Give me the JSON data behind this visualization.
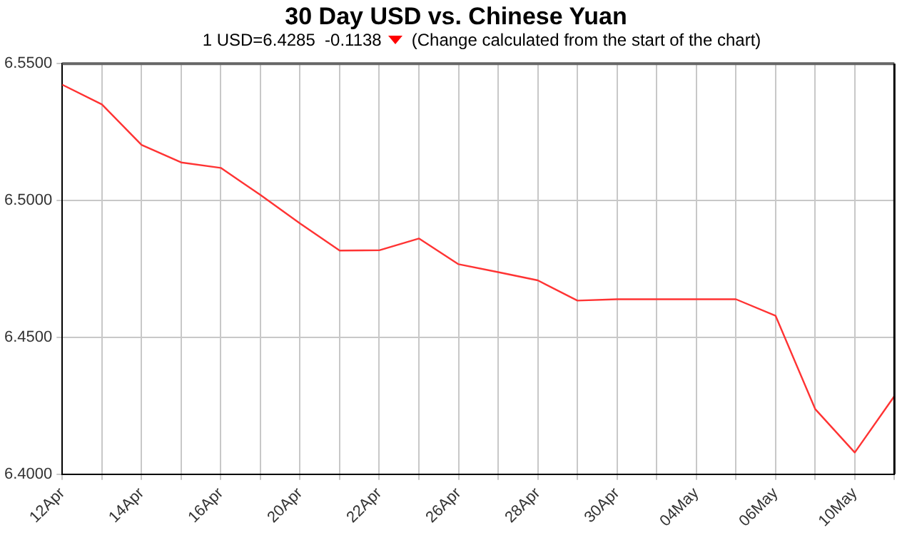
{
  "chart_data": {
    "type": "line",
    "title": "30 Day USD vs. Chinese Yuan",
    "subtitle": "1 USD=6.4285  -0.1138",
    "annotations": [
      "(Change calculated from the start of the chart)"
    ],
    "categories": [
      "12Apr",
      null,
      "14Apr",
      null,
      "16Apr",
      null,
      "20Apr",
      null,
      "22Apr",
      null,
      "26Apr",
      null,
      "28Apr",
      null,
      "30Apr",
      null,
      "04May",
      null,
      "06May",
      null,
      "10May",
      null
    ],
    "series": [
      {
        "color": "#ff3333",
        "values": [
          6.5423,
          6.5351,
          6.5203,
          6.5139,
          6.5119,
          6.502,
          6.4916,
          6.4817,
          6.4818,
          6.4861,
          6.4767,
          6.4738,
          6.4708,
          6.4634,
          6.4639,
          6.4639,
          6.4639,
          6.4639,
          6.4579,
          6.4238,
          6.4079,
          6.4285
        ]
      }
    ],
    "ylim": [
      6.4,
      6.55
    ],
    "yticks": [
      {
        "value": 6.4,
        "label": "6.4000"
      },
      {
        "value": 6.45,
        "label": "6.4500"
      },
      {
        "value": 6.5,
        "label": "6.5000"
      },
      {
        "value": 6.55,
        "label": "6.5500"
      }
    ],
    "grid": true,
    "legend": false,
    "marker": "none",
    "line_style": "solid"
  }
}
